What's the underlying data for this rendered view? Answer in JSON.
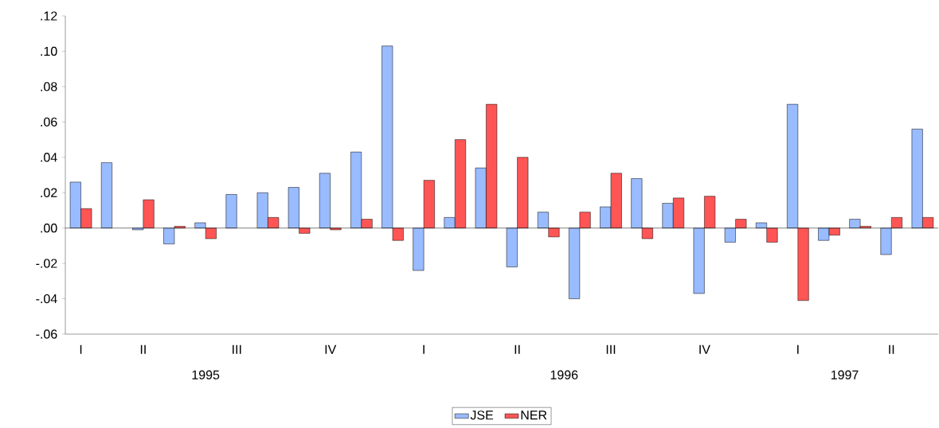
{
  "chart_data": {
    "type": "bar",
    "categories": [
      "I",
      null,
      "II",
      null,
      null,
      "III",
      null,
      null,
      "IV",
      null,
      null,
      "I",
      null,
      null,
      "II",
      null,
      null,
      "III",
      null,
      null,
      "IV",
      null,
      null,
      "I",
      null,
      null,
      "II",
      null
    ],
    "series": [
      {
        "name": "JSE",
        "color": "#99bbff",
        "values": [
          0.026,
          0.037,
          -0.001,
          -0.009,
          0.003,
          0.019,
          0.02,
          0.023,
          0.031,
          0.043,
          0.103,
          -0.024,
          0.006,
          0.034,
          -0.022,
          0.009,
          -0.04,
          0.012,
          0.028,
          0.014,
          -0.037,
          -0.008,
          0.003,
          0.07,
          -0.007,
          0.005,
          -0.015,
          0.056
        ]
      },
      {
        "name": "NER",
        "color": "#ff5555",
        "values": [
          0.011,
          null,
          0.016,
          0.001,
          -0.006,
          null,
          0.006,
          -0.003,
          -0.001,
          0.005,
          -0.007,
          0.027,
          0.05,
          0.07,
          0.04,
          -0.005,
          0.009,
          0.031,
          -0.006,
          0.017,
          0.018,
          0.005,
          -0.008,
          -0.041,
          -0.004,
          0.001,
          0.006,
          0.006
        ]
      }
    ],
    "ylim": [
      -0.06,
      0.12
    ],
    "yticks": [
      {
        "value": -0.06,
        "label": "-.06"
      },
      {
        "value": -0.04,
        "label": "-.04"
      },
      {
        "value": -0.02,
        "label": "-.02"
      },
      {
        "value": 0,
        "label": ".00"
      },
      {
        "value": 0.02,
        "label": ".02"
      },
      {
        "value": 0.04,
        "label": ".04"
      },
      {
        "value": 0.06,
        "label": ".06"
      },
      {
        "value": 0.08,
        "label": ".08"
      },
      {
        "value": 0.1,
        "label": ".10"
      },
      {
        "value": 0.12,
        "label": ".12"
      }
    ],
    "ref_lines": [
      {
        "axis": "y",
        "value": 0
      }
    ],
    "annotations": [
      "1995",
      "1996",
      "1997"
    ],
    "legend": "bottom",
    "grid": false
  }
}
